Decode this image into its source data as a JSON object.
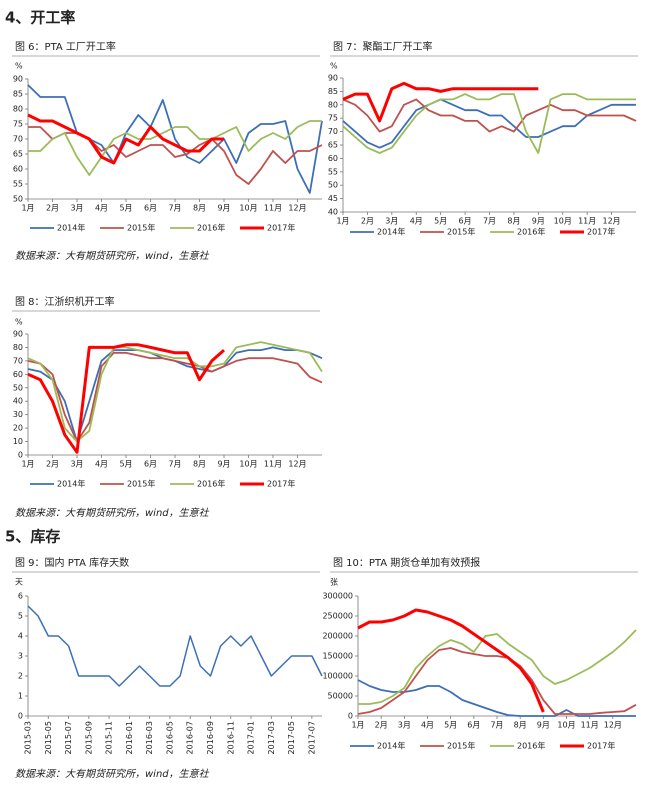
{
  "sections": [
    {
      "heading": "4、开工率"
    },
    {
      "heading": "5、库存"
    }
  ],
  "sources": [
    "数据来源：大有期货研究所，wind，生意社",
    "数据来源：大有期货研究所，wind，生意社",
    "数据来源：大有期货研究所，wind，生意社"
  ],
  "chart_data": [
    {
      "type": "line",
      "title": "图 6：PTA 工厂开工率",
      "ylabel": "%",
      "x": [
        1,
        1.5,
        2,
        2.5,
        3,
        3.5,
        4,
        4.5,
        5,
        5.5,
        6,
        6.5,
        7,
        7.5,
        8,
        8.5,
        9,
        9.5,
        10,
        10.5,
        11,
        11.5,
        12,
        12.5,
        13
      ],
      "xlim": [
        1,
        13
      ],
      "xticks": [
        {
          "value": 1,
          "label": "1月"
        },
        {
          "value": 2,
          "label": "2月"
        },
        {
          "value": 3,
          "label": "3月"
        },
        {
          "value": 4,
          "label": "4月"
        },
        {
          "value": 5,
          "label": "5月"
        },
        {
          "value": 6,
          "label": "6月"
        },
        {
          "value": 7,
          "label": "7月"
        },
        {
          "value": 8,
          "label": "8月"
        },
        {
          "value": 9,
          "label": "9月"
        },
        {
          "value": 10,
          "label": "10月"
        },
        {
          "value": 11,
          "label": "11月"
        },
        {
          "value": 12,
          "label": "12月"
        }
      ],
      "ylim": [
        50,
        90
      ],
      "yticks": [
        50,
        55,
        60,
        65,
        70,
        75,
        80,
        85,
        90
      ],
      "series": [
        {
          "name": "2014年",
          "color": "#3d6fb6",
          "values": [
            88,
            84,
            84,
            84,
            72,
            70,
            68,
            62,
            72,
            78,
            74,
            83,
            70,
            64,
            62,
            66,
            70,
            62,
            72,
            75,
            75,
            76,
            60,
            52,
            76
          ]
        },
        {
          "name": "2015年",
          "color": "#c0504d",
          "values": [
            74,
            74,
            70,
            72,
            72,
            70,
            66,
            68,
            64,
            66,
            68,
            68,
            64,
            65,
            68,
            70,
            66,
            58,
            55,
            60,
            66,
            62,
            66,
            66,
            68
          ]
        },
        {
          "name": "2016年",
          "color": "#9bbb59",
          "values": [
            66,
            66,
            70,
            72,
            64,
            58,
            64,
            70,
            72,
            70,
            70,
            72,
            74,
            74,
            70,
            70,
            72,
            74,
            66,
            70,
            72,
            70,
            74,
            76,
            76
          ]
        },
        {
          "name": "2017年",
          "color": "#ff0000",
          "values": [
            78,
            76,
            76,
            74,
            72,
            70,
            64,
            62,
            70,
            68,
            74,
            70,
            68,
            66,
            66,
            70,
            70,
            null,
            null,
            null,
            null,
            null,
            null,
            null,
            null
          ]
        }
      ]
    },
    {
      "type": "line",
      "title": "图 7：聚酯工厂开工率",
      "ylabel": "%",
      "x": [
        1,
        1.5,
        2,
        2.5,
        3,
        3.5,
        4,
        4.5,
        5,
        5.5,
        6,
        6.5,
        7,
        7.5,
        8,
        8.5,
        9,
        9.5,
        10,
        10.5,
        11,
        11.5,
        12,
        12.5,
        13
      ],
      "xlim": [
        1,
        13
      ],
      "xticks": [
        {
          "value": 1,
          "label": "1月"
        },
        {
          "value": 2,
          "label": "2月"
        },
        {
          "value": 3,
          "label": "3月"
        },
        {
          "value": 4,
          "label": "4月"
        },
        {
          "value": 5,
          "label": "5月"
        },
        {
          "value": 6,
          "label": "6月"
        },
        {
          "value": 7,
          "label": "7月"
        },
        {
          "value": 8,
          "label": "8月"
        },
        {
          "value": 9,
          "label": "9月"
        },
        {
          "value": 10,
          "label": "10月"
        },
        {
          "value": 11,
          "label": "11月"
        },
        {
          "value": 12,
          "label": "12月"
        }
      ],
      "ylim": [
        40,
        90
      ],
      "yticks": [
        40,
        45,
        50,
        55,
        60,
        65,
        70,
        75,
        80,
        85,
        90
      ],
      "series": [
        {
          "name": "2014年",
          "color": "#3d6fb6",
          "values": [
            74,
            70,
            66,
            64,
            66,
            72,
            78,
            80,
            82,
            80,
            78,
            78,
            76,
            76,
            72,
            68,
            68,
            70,
            72,
            72,
            76,
            78,
            80,
            80,
            80
          ]
        },
        {
          "name": "2015年",
          "color": "#c0504d",
          "values": [
            82,
            80,
            76,
            70,
            72,
            80,
            82,
            78,
            76,
            76,
            74,
            74,
            70,
            72,
            70,
            76,
            78,
            80,
            78,
            78,
            76,
            76,
            76,
            76,
            74
          ]
        },
        {
          "name": "2016年",
          "color": "#9bbb59",
          "values": [
            72,
            68,
            64,
            62,
            64,
            70,
            76,
            80,
            82,
            82,
            84,
            82,
            82,
            84,
            84,
            70,
            62,
            82,
            84,
            84,
            82,
            82,
            82,
            82,
            82
          ]
        },
        {
          "name": "2017年",
          "color": "#ff0000",
          "values": [
            82,
            84,
            84,
            74,
            86,
            88,
            86,
            86,
            85,
            86,
            86,
            86,
            86,
            86,
            86,
            86,
            86,
            null,
            null,
            null,
            null,
            null,
            null,
            null,
            null
          ]
        }
      ]
    },
    {
      "type": "line",
      "title": "图 8：江浙织机开工率",
      "ylabel": "%",
      "x": [
        1,
        1.5,
        2,
        2.5,
        3,
        3.5,
        4,
        4.5,
        5,
        5.5,
        6,
        6.5,
        7,
        7.5,
        8,
        8.5,
        9,
        9.5,
        10,
        10.5,
        11,
        11.5,
        12,
        12.5,
        13
      ],
      "xlim": [
        1,
        13
      ],
      "xticks": [
        {
          "value": 1,
          "label": "1月"
        },
        {
          "value": 2,
          "label": "2月"
        },
        {
          "value": 3,
          "label": "3月"
        },
        {
          "value": 4,
          "label": "4月"
        },
        {
          "value": 5,
          "label": "5月"
        },
        {
          "value": 6,
          "label": "6月"
        },
        {
          "value": 7,
          "label": "7月"
        },
        {
          "value": 8,
          "label": "8月"
        },
        {
          "value": 9,
          "label": "9月"
        },
        {
          "value": 10,
          "label": "10月"
        },
        {
          "value": 11,
          "label": "11月"
        },
        {
          "value": 12,
          "label": "12月"
        }
      ],
      "ylim": [
        0,
        90
      ],
      "yticks": [
        0,
        10,
        20,
        30,
        40,
        50,
        60,
        70,
        80,
        90
      ],
      "series": [
        {
          "name": "2014年",
          "color": "#3d6fb6",
          "values": [
            64,
            62,
            56,
            40,
            10,
            40,
            70,
            78,
            78,
            78,
            76,
            72,
            70,
            66,
            64,
            62,
            66,
            76,
            78,
            78,
            80,
            78,
            78,
            76,
            72
          ]
        },
        {
          "name": "2015年",
          "color": "#c0504d",
          "values": [
            70,
            68,
            60,
            30,
            10,
            24,
            66,
            76,
            76,
            74,
            72,
            72,
            70,
            68,
            66,
            62,
            66,
            70,
            72,
            72,
            72,
            70,
            68,
            58,
            54
          ]
        },
        {
          "name": "2016年",
          "color": "#9bbb59",
          "values": [
            72,
            68,
            56,
            20,
            10,
            18,
            60,
            80,
            80,
            78,
            76,
            74,
            72,
            72,
            66,
            66,
            68,
            80,
            82,
            84,
            82,
            80,
            78,
            76,
            62
          ]
        },
        {
          "name": "2017年",
          "color": "#ff0000",
          "values": [
            60,
            56,
            40,
            15,
            2,
            80,
            80,
            80,
            82,
            82,
            80,
            78,
            76,
            76,
            56,
            70,
            78,
            null,
            null,
            null,
            null,
            null,
            null,
            null,
            null
          ]
        }
      ]
    },
    {
      "type": "line",
      "title": "图 9：国内 PTA 库存天数",
      "ylabel": "天",
      "categories": [
        "2015-03",
        null,
        "2015-05",
        null,
        "2015-07",
        null,
        "2015-09",
        null,
        "2015-11",
        null,
        "2016-01",
        null,
        "2016-03",
        null,
        "2016-05",
        null,
        "2016-07",
        null,
        "2016-09",
        null,
        "2016-11",
        null,
        "2017-01",
        null,
        "2017-03",
        null,
        "2017-05",
        null,
        "2017-07",
        null
      ],
      "ylim": [
        0,
        6
      ],
      "yticks": [
        0,
        1,
        2,
        3,
        4,
        5,
        6
      ],
      "color": "#3d6fb6",
      "values": [
        5.5,
        5,
        4,
        4,
        3.5,
        2,
        2,
        2,
        2,
        1.5,
        2,
        2.5,
        2,
        1.5,
        1.5,
        2,
        4,
        2.5,
        2,
        3.5,
        4,
        3.5,
        4,
        3,
        2,
        2.5,
        3,
        3,
        3,
        2
      ]
    },
    {
      "type": "line",
      "title": "图 10：PTA 期货仓单加有效预报",
      "ylabel": "张",
      "x": [
        1,
        1.5,
        2,
        2.5,
        3,
        3.5,
        4,
        4.5,
        5,
        5.5,
        6,
        6.5,
        7,
        7.5,
        8,
        8.5,
        9,
        9.5,
        10,
        10.5,
        11,
        11.5,
        12,
        12.5,
        13
      ],
      "xlim": [
        1,
        13
      ],
      "xticks": [
        {
          "value": 1,
          "label": "1月"
        },
        {
          "value": 2,
          "label": "2月"
        },
        {
          "value": 3,
          "label": "3月"
        },
        {
          "value": 4,
          "label": "4月"
        },
        {
          "value": 5,
          "label": "5月"
        },
        {
          "value": 6,
          "label": "6月"
        },
        {
          "value": 7,
          "label": "7月"
        },
        {
          "value": 8,
          "label": "8月"
        },
        {
          "value": 9,
          "label": "9月"
        },
        {
          "value": 10,
          "label": "10月"
        },
        {
          "value": 11,
          "label": "11月"
        },
        {
          "value": 12,
          "label": "12月"
        }
      ],
      "ylim": [
        0,
        300000
      ],
      "yticks": [
        0,
        50000,
        100000,
        150000,
        200000,
        250000,
        300000
      ],
      "series": [
        {
          "name": "2014年",
          "color": "#3d6fb6",
          "values": [
            90000,
            75000,
            65000,
            60000,
            60000,
            65000,
            75000,
            75000,
            60000,
            40000,
            30000,
            20000,
            10000,
            2000,
            0,
            0,
            0,
            0,
            15000,
            0,
            0,
            0,
            0,
            0,
            0
          ]
        },
        {
          "name": "2015年",
          "color": "#c0504d",
          "values": [
            5000,
            10000,
            20000,
            40000,
            60000,
            100000,
            140000,
            165000,
            170000,
            160000,
            155000,
            150000,
            150000,
            145000,
            125000,
            90000,
            40000,
            5000,
            5000,
            5000,
            5000,
            8000,
            10000,
            12000,
            28000
          ]
        },
        {
          "name": "2016年",
          "color": "#9bbb59",
          "values": [
            30000,
            30000,
            35000,
            50000,
            70000,
            120000,
            150000,
            175000,
            190000,
            180000,
            160000,
            200000,
            205000,
            180000,
            160000,
            140000,
            100000,
            80000,
            90000,
            105000,
            120000,
            140000,
            160000,
            185000,
            215000
          ]
        },
        {
          "name": "2017年",
          "color": "#ff0000",
          "values": [
            220000,
            235000,
            235000,
            240000,
            250000,
            265000,
            260000,
            250000,
            240000,
            225000,
            205000,
            185000,
            165000,
            145000,
            120000,
            80000,
            10000,
            null,
            null,
            null,
            null,
            null,
            null,
            null,
            null
          ]
        }
      ]
    }
  ]
}
